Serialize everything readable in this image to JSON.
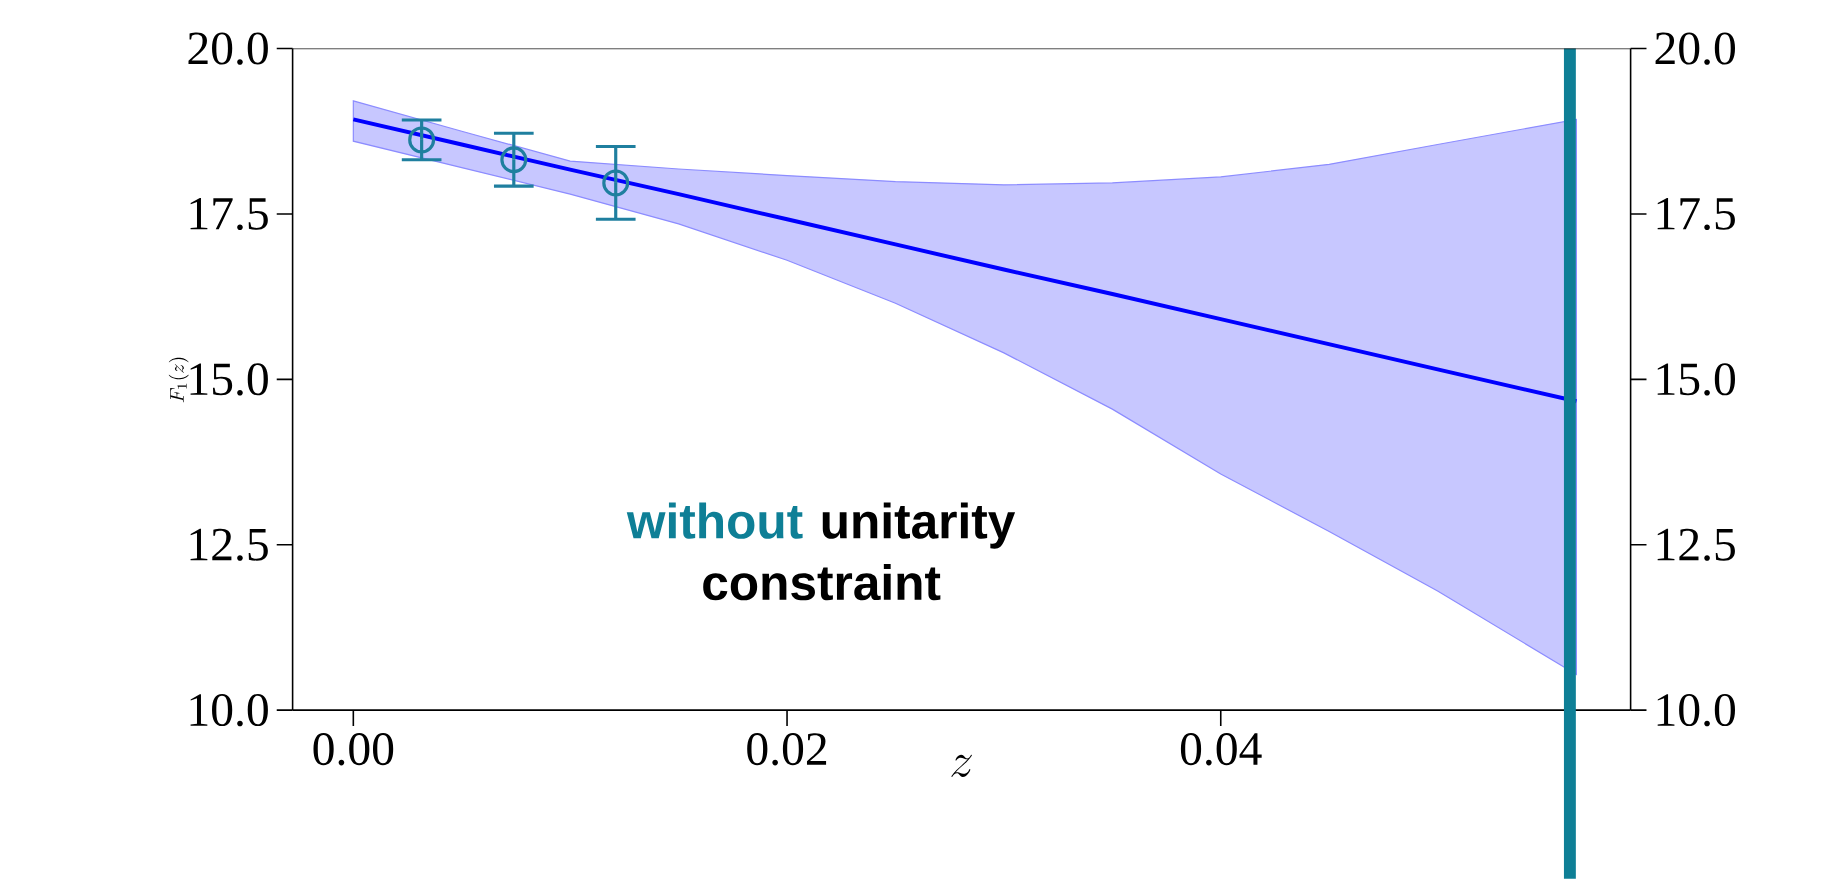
{
  "chart_data": {
    "type": "line",
    "xlabel": "z",
    "ylabel": "F_1(z)",
    "xlim": [
      -0.0028,
      0.0589
    ],
    "ylim": [
      10.0,
      20.0
    ],
    "xticks": [
      {
        "value": 0,
        "label": "0.00"
      },
      {
        "value": 0.02,
        "label": "0.02"
      },
      {
        "value": 0.04,
        "label": "0.04"
      }
    ],
    "yticks": [
      {
        "value": 10,
        "label": "10.0"
      },
      {
        "value": 12.5,
        "label": "12.5"
      },
      {
        "value": 15,
        "label": "15.0"
      },
      {
        "value": 17.5,
        "label": "17.5"
      },
      {
        "value": 20,
        "label": "20.0"
      }
    ],
    "y2lim": [
      10.0,
      20.0
    ],
    "y2ticks": [
      {
        "value": 10,
        "label": "10.0"
      },
      {
        "value": 12.5,
        "label": "12.5"
      },
      {
        "value": 15,
        "label": "15.0"
      },
      {
        "value": 17.5,
        "label": "17.5"
      },
      {
        "value": 20,
        "label": "20.0"
      }
    ],
    "series": [
      {
        "color": "#0000ff",
        "marker": "none",
        "x": [
          0,
          0.005,
          0.01,
          0.015,
          0.02,
          0.025,
          0.03,
          0.035,
          0.04,
          0.045,
          0.05,
          0.0564
        ],
        "values": [
          18.93,
          18.55,
          18.17,
          17.8,
          17.42,
          17.04,
          16.66,
          16.29,
          15.91,
          15.53,
          15.15,
          14.67
        ],
        "lower": [
          18.6,
          18.2,
          17.8,
          17.35,
          16.8,
          16.15,
          15.4,
          14.55,
          13.57,
          12.7,
          11.8,
          10.54
        ],
        "upper": [
          19.21,
          18.75,
          18.3,
          18.18,
          18.08,
          17.99,
          17.94,
          17.97,
          18.06,
          18.25,
          18.55,
          18.93
        ]
      },
      {
        "type": "scatter",
        "color": "#1f7f9f",
        "marker": "circle",
        "x": [
          0.00315,
          0.0074,
          0.0121
        ],
        "values": [
          18.62,
          18.32,
          17.97
        ],
        "errors": [
          0.3,
          0.4,
          0.55
        ]
      }
    ],
    "ref_lines": [
      {
        "axis": "x",
        "value": 0.0561,
        "color": "#0e7f96"
      }
    ],
    "annotations": [
      "without",
      "unitarity constraint"
    ],
    "grid": false
  }
}
